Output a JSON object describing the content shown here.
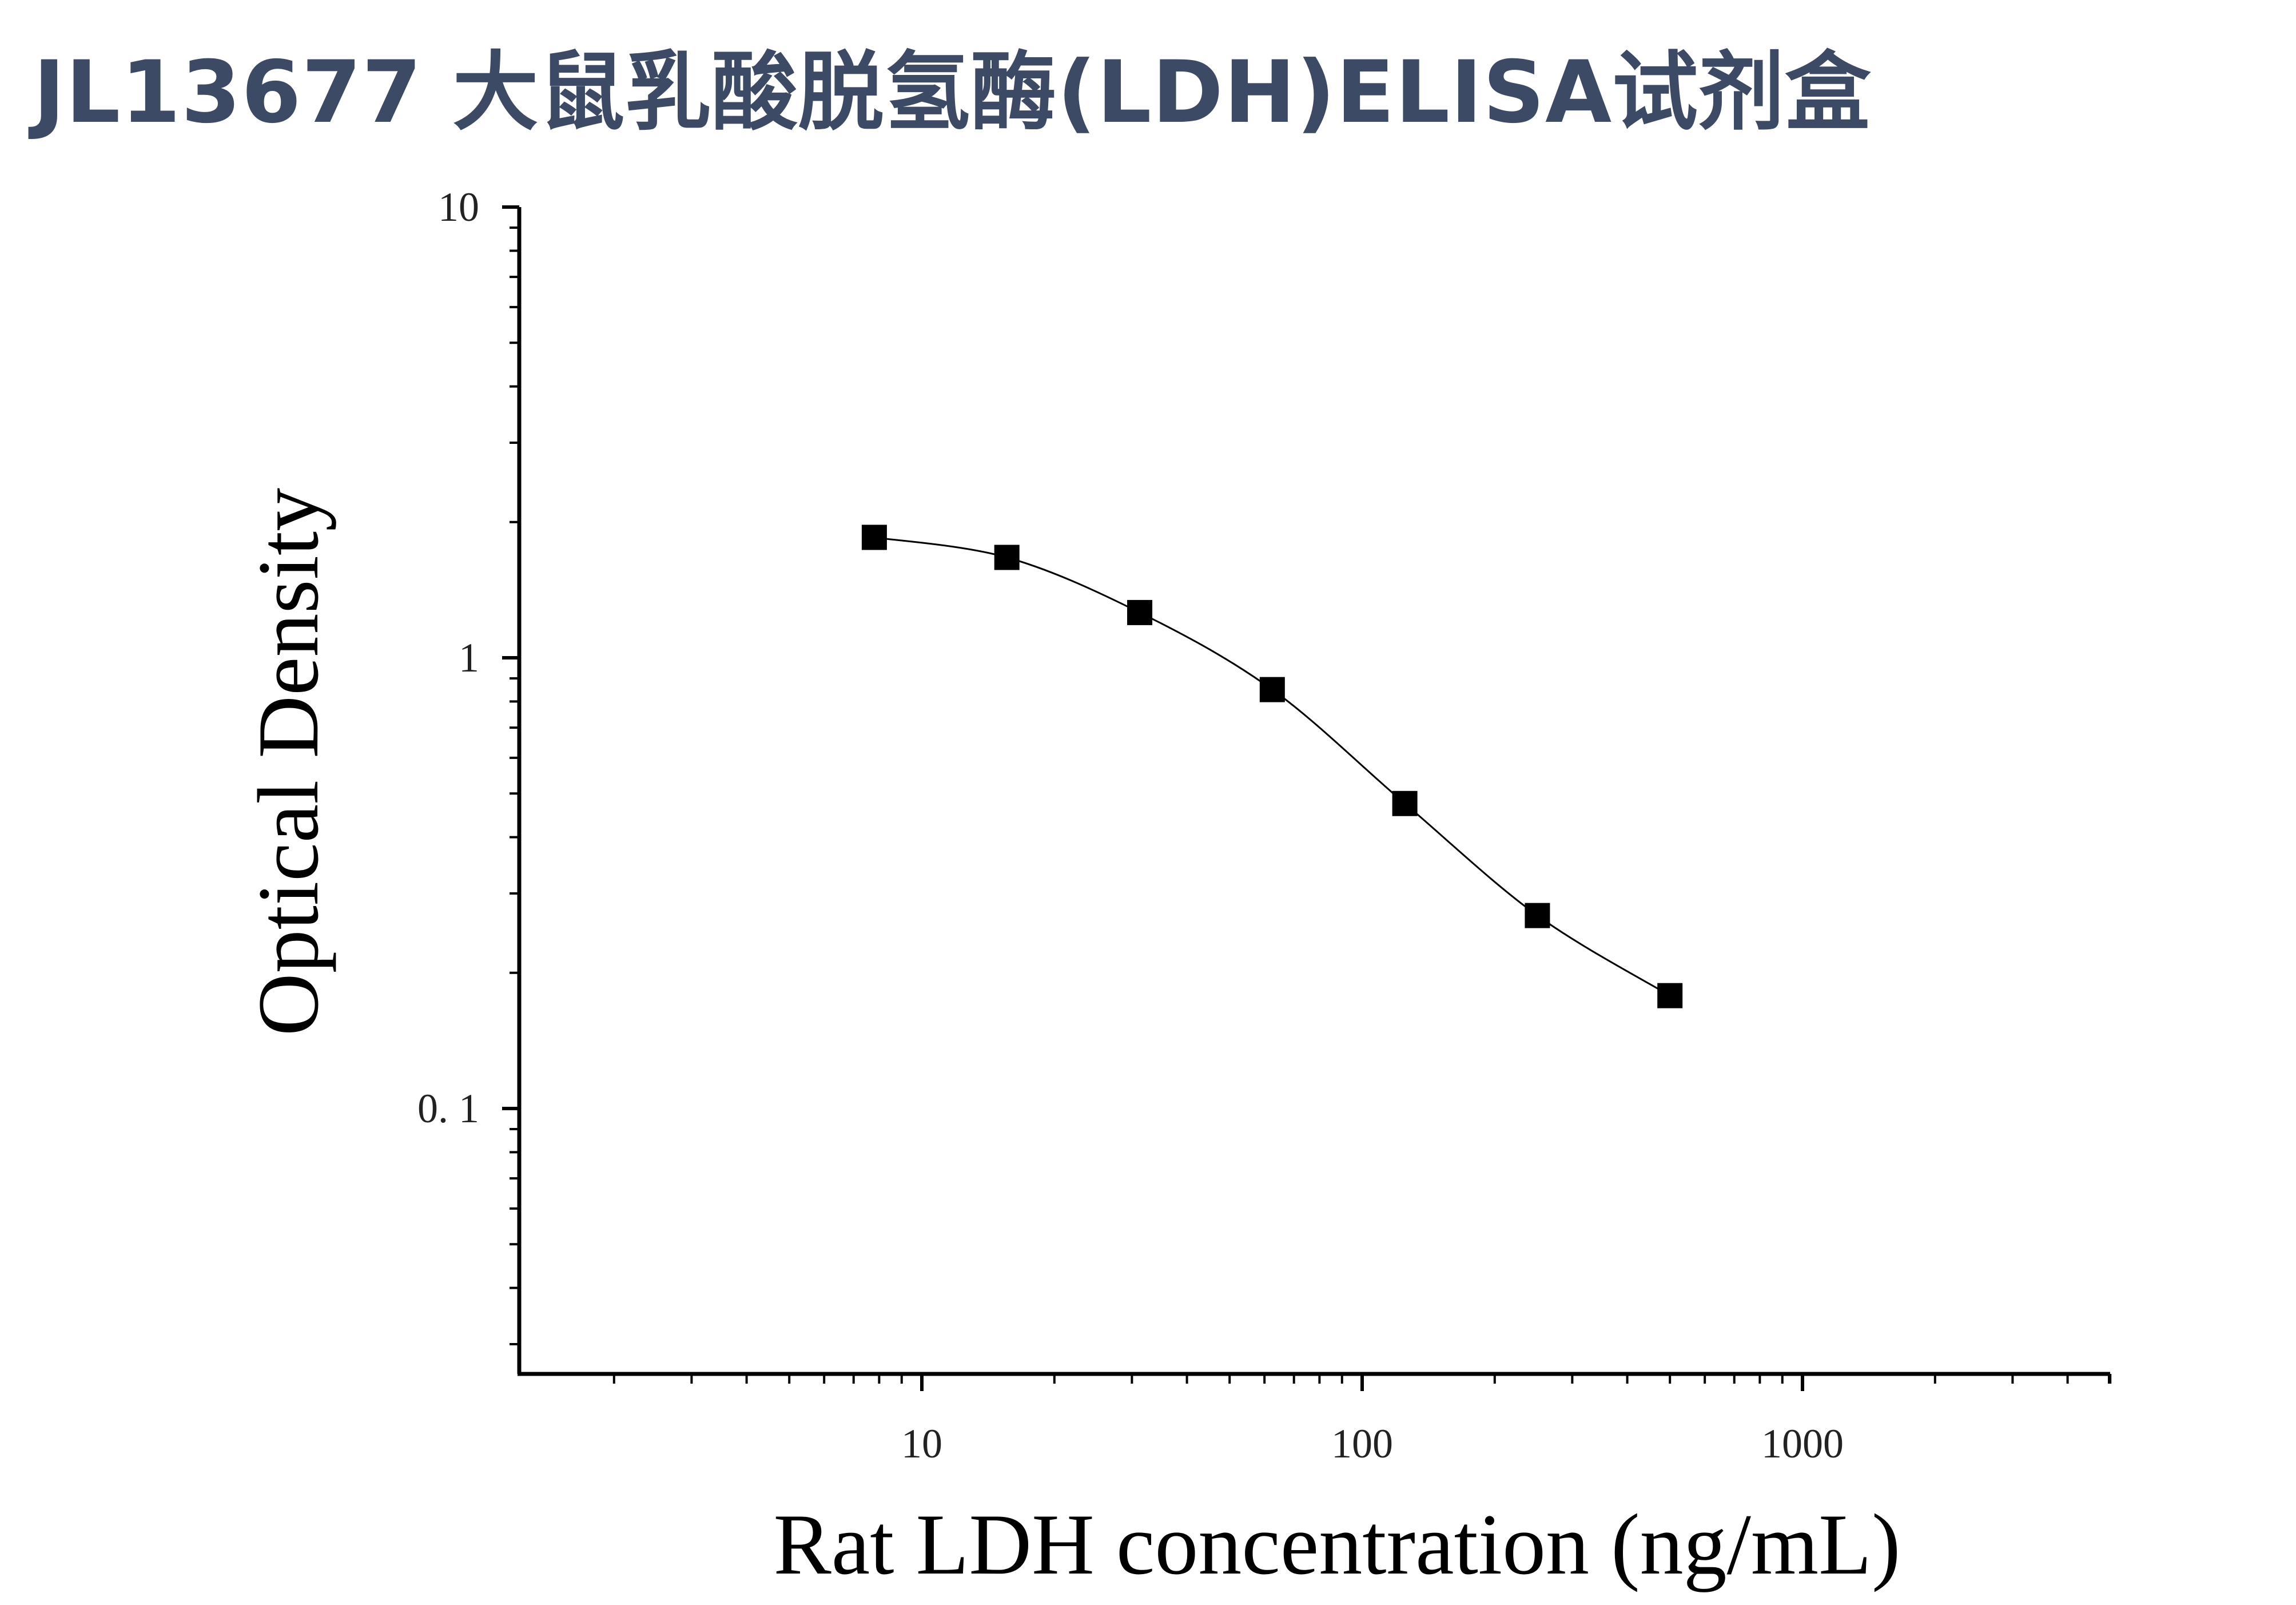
{
  "title": "JL13677 大鼠乳酸脱氢酶(LDH)ELISA试剂盒",
  "chart_data": {
    "type": "scatter",
    "xlabel": "Rat LDH concentration (ng/mL)",
    "ylabel": "Optical Density",
    "xscale": "log",
    "yscale": "log",
    "xlim": [
      1.2,
      5000
    ],
    "ylim": [
      0.025,
      10
    ],
    "x_ticks": [
      {
        "value": 10,
        "label": "10"
      },
      {
        "value": 100,
        "label": "100"
      },
      {
        "value": 1000,
        "label": "1000"
      }
    ],
    "y_ticks": [
      {
        "value": 10,
        "label": "10"
      },
      {
        "value": 1,
        "label": "1"
      },
      {
        "value": 0.1,
        "label": "0. 1"
      }
    ],
    "grid": false,
    "marker": "square",
    "fitted_curve": true,
    "series": [
      {
        "x": [
          7.8,
          15.6,
          31.25,
          62.5,
          125,
          250,
          500
        ],
        "y": [
          1.85,
          1.67,
          1.26,
          0.85,
          0.475,
          0.268,
          0.178
        ]
      }
    ],
    "colors": {
      "points": "#000000",
      "curve": "#000000",
      "axes": "#000000",
      "title": "#3d4a66"
    }
  }
}
